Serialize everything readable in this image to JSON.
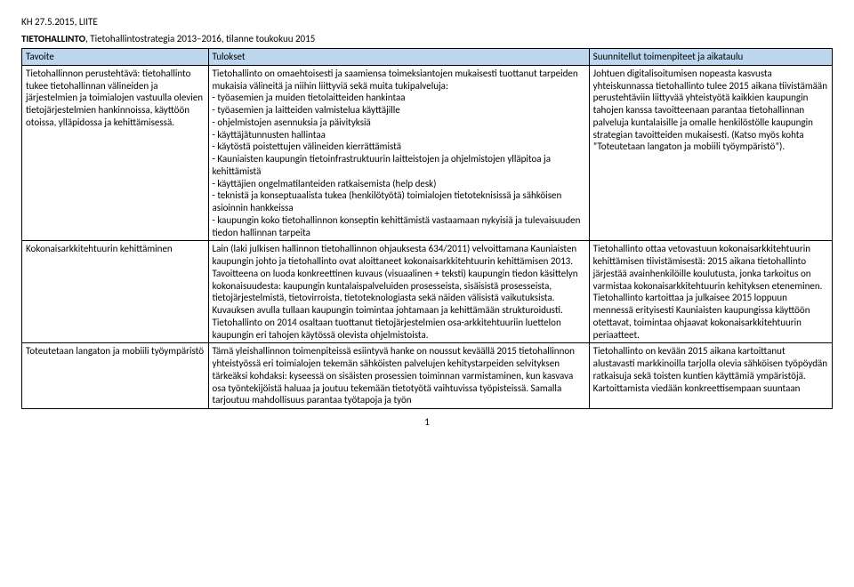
{
  "header": "KH 27.5.2015, LIITE",
  "title": {
    "bold": "TIETOHALLINTO",
    "rest": ", Tietohallintostrategia 2013–2016, tilanne toukokuu 2015"
  },
  "columns": [
    "Tavoite",
    "Tulokset",
    "Suunnitellut toimenpiteet ja aikataulu"
  ],
  "rows": [
    {
      "c1": "Tietohallinnon perustehtävä: tietohallinto tukee tietohallinnan välineiden ja järjestelmien ja toimialojen vastuulla olevien tietojärjestelmien hankinnoissa, käyttöön otoissa, ylläpidossa ja kehittämisessä.",
      "c2": "Tietohallinto on omaehtoisesti ja saamiensa toimeksiantojen mukaisesti tuottanut tarpeiden mukaisia välineitä ja niihin liittyviä sekä muita tukipalveluja:\n- työasemien ja muiden tietolaitteiden hankintaa\n- työasemien ja laitteiden valmistelua käyttäjille\n- ohjelmistojen asennuksia ja päivityksiä\n-  käyttäjätunnusten hallintaa\n- käytöstä poistettujen välineiden kierrättämistä\n- Kauniaisten kaupungin tietoinfrastruktuurin laitteistojen ja ohjelmistojen  ylläpitoa ja kehittämistä\n- käyttäjien ongelmatilanteiden ratkaisemista (help desk)\n- teknistä ja konseptuaalista tukea (henkilötyötä) toimialojen tietoteknisissä ja sähköisen asioinnin hankkeissa\n- kaupungin koko tietohallinnon konseptin kehittämistä vastaamaan nykyisiä ja tulevaisuuden tiedon hallinnan tarpeita",
      "c3": "Johtuen digitalisoitumisen nopeasta kasvusta yhteiskunnassa tietohallinto tulee 2015 aikana tiivistämään perustehtäviin liittyvää yhteistyötä kaikkien kaupungin tahojen kanssa tavoitteenaan parantaa tietohallinnan palveluja kuntalaisille ja omalle henkilöstölle kaupungin strategian tavoitteiden mukaisesti. (Katso myös kohta ”Toteutetaan langaton ja mobiili työympäristö”)."
    },
    {
      "c1": "Kokonaisarkkitehtuurin kehittäminen",
      "c2": "Lain (laki julkisen hallinnon tietohallinnon ohjauksesta 634/2011) velvoittamana Kauniaisten kaupungin johto ja tietohallinto ovat aloittaneet kokonaisarkkitehtuurin kehittämisen 2013. Tavoitteena on luoda konkreettinen kuvaus (visuaalinen + teksti) kaupungin tiedon käsittelyn kokonaisuudesta: kaupungin kuntalaispalveluiden prosesseista, sisäisistä prosesseista, tietojärjestelmistä, tietovirroista, tietoteknologiasta sekä näiden välisistä vaikutuksista. Kuvauksen avulla tullaan kaupungin toimintaa johtamaan ja kehittämään strukturoidusti. Tietohallinto on 2014 osaltaan tuottanut tietojärjestelmien osa-arkkitehtuuriin luettelon kaupungin eri tahojen käytössä olevista ohjelmistoista.",
      "c3": "Tietohallinto ottaa vetovastuun kokonaisarkkitehtuurin kehittämisen tiivistämisestä: 2015 aikana tietohallinto järjestää avainhenkilöille koulutusta, jonka tarkoitus on varmistaa kokonaisarkkitehtuurin kehityksen eteneminen. Tietohallinto kartoittaa ja julkaisee 2015 loppuun mennessä erityisesti Kauniaisten kaupungissa käyttöön otettavat, toimintaa ohjaavat kokonaisarkkitehtuurin periaatteet."
    },
    {
      "c1": "Toteutetaan langaton ja mobiili työympäristö",
      "c2": "Tämä yleishallinnon toimenpiteissä esiintyvä hanke on noussut keväällä 2015 tietohallinnon yhteistyössä eri toimialojen tekemän sähköisten palvelujen kehitystarpeiden selvityksen tärkeäksi kohdaksi: kyseessä on sisäisten prosessien toiminnan varmistaminen, kun kasvava osa työntekijöistä haluaa ja joutuu tekemään tietotyötä vaihtuvissa työpisteissä. Samalla tarjoutuu mahdollisuus parantaa työtapoja ja työn",
      "c3": "Tietohallinto on kevään 2015 aikana kartoittanut alustavasti markkinoilla tarjolla olevia sähköisen työpöydän ratkaisuja sekä toisten kuntien käyttämiä ympäristöjä. Kartoittamista viedään konkreettisempaan suuntaan"
    }
  ],
  "pageNumber": "1"
}
